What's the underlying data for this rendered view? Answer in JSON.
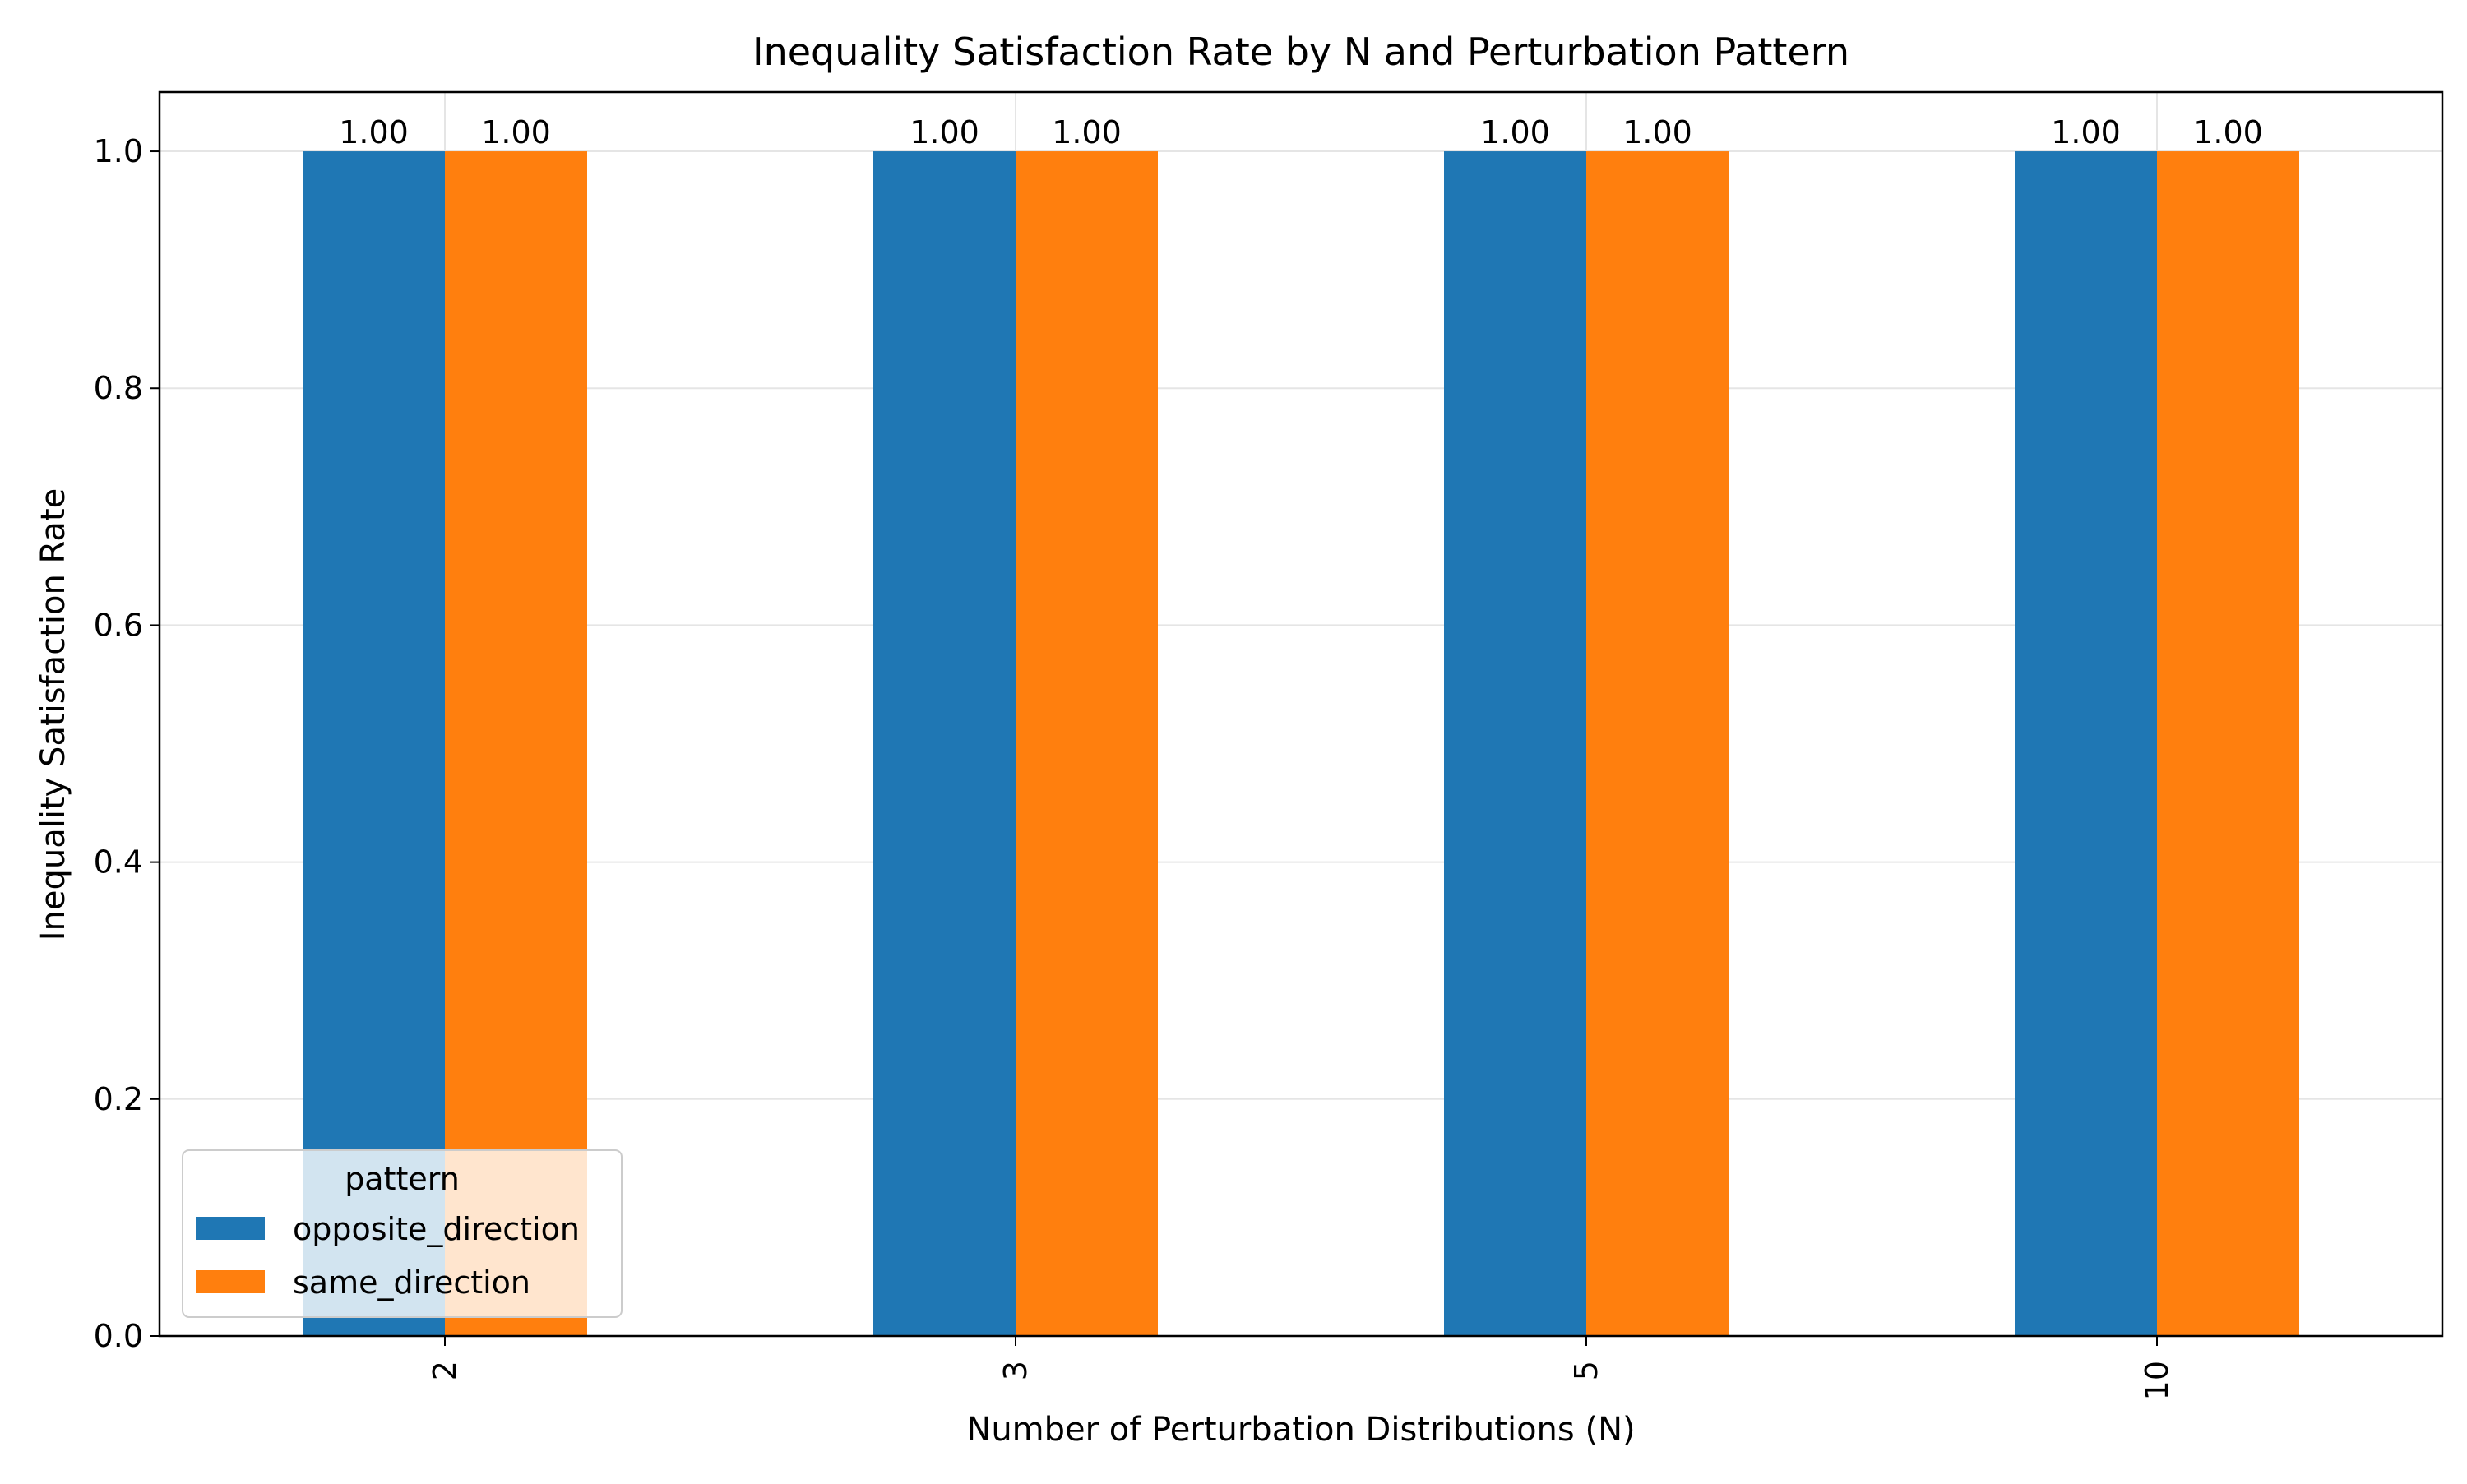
{
  "chart_data": {
    "type": "bar",
    "title": "Inequality Satisfaction Rate by N and Perturbation Pattern",
    "xlabel": "Number of Perturbation Distributions (N)",
    "ylabel": "Inequality Satisfaction Rate",
    "categories": [
      "2",
      "3",
      "5",
      "10"
    ],
    "ylim": [
      0,
      1.05
    ],
    "yticks": [
      0.0,
      0.2,
      0.4,
      0.6,
      0.8,
      1.0
    ],
    "ytick_labels": [
      "0.0",
      "0.2",
      "0.4",
      "0.6",
      "0.8",
      "1.0"
    ],
    "grid": true,
    "legend": {
      "title": "pattern",
      "position": "lower-left"
    },
    "series": [
      {
        "name": "opposite_direction",
        "color": "#1f77b4",
        "values": [
          1.0,
          1.0,
          1.0,
          1.0
        ],
        "labels": [
          "1.00",
          "1.00",
          "1.00",
          "1.00"
        ]
      },
      {
        "name": "same_direction",
        "color": "#ff7f0e",
        "values": [
          1.0,
          1.0,
          1.0,
          1.0
        ],
        "labels": [
          "1.00",
          "1.00",
          "1.00",
          "1.00"
        ]
      }
    ]
  }
}
